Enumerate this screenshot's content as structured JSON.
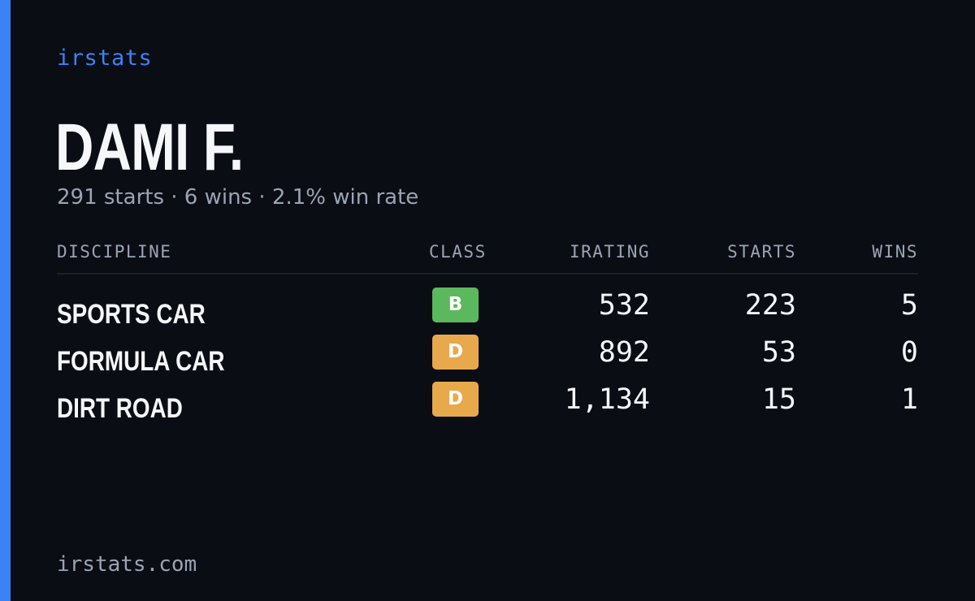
{
  "brand": "irstats",
  "driver": {
    "name": "DAMI F.",
    "summary": "291 starts · 6 wins · 2.1% win rate"
  },
  "table": {
    "headers": {
      "discipline": "DISCIPLINE",
      "class": "CLASS",
      "irating": "IRATING",
      "starts": "STARTS",
      "wins": "WINS"
    },
    "rows": [
      {
        "discipline": "SPORTS CAR",
        "class": "B",
        "class_color": "#5cb85c",
        "irating": "532",
        "starts": "223",
        "wins": "5"
      },
      {
        "discipline": "FORMULA CAR",
        "class": "D",
        "class_color": "#e8a94c",
        "irating": "892",
        "starts": "53",
        "wins": "0"
      },
      {
        "discipline": "DIRT ROAD",
        "class": "D",
        "class_color": "#e8a94c",
        "irating": "1,134",
        "starts": "15",
        "wins": "1"
      }
    ]
  },
  "footer": {
    "domain": "irstats.com"
  },
  "colors": {
    "background": "#0a0d14",
    "accent": "#3b82f6",
    "muted_text": "#9ba4b4",
    "primary_text": "#f5f7fa"
  }
}
